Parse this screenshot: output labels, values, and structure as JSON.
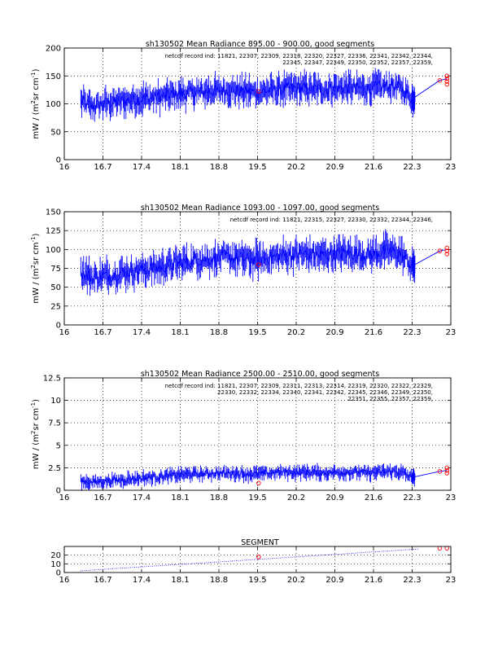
{
  "panels": [
    {
      "title": "sh130502 Mean Radiance 895.00 - 900.00, good segments",
      "ylabel_main": "mW / (m",
      "ylabel_sup": "2",
      "ylabel_tail": "sr cm",
      "ylabel_sup2": "-1",
      "ylabel_close": ")",
      "annotation": [
        "netcdf record ind:  11821, 22307, 22309, 22318, 22320, 22327, 22336, 22341, 22342, 22344,",
        "22345, 22347, 22349, 22350, 22352, 22357, 22359,"
      ]
    },
    {
      "title": "sh130502 Mean Radiance 1093.00 - 1097.00, good segments",
      "ylabel_main": "mW / (m",
      "ylabel_sup": "2",
      "ylabel_tail": "sr cm",
      "ylabel_sup2": "-1",
      "ylabel_close": ")",
      "annotation": [
        "netcdf record ind:  11821, 22315, 22327, 22330, 22332, 22344, 22346,"
      ]
    },
    {
      "title": "sh130502 Mean Radiance 2500.00 - 2510.00, good segments",
      "ylabel_main": "mW / (m",
      "ylabel_sup": "2",
      "ylabel_tail": "sr cm",
      "ylabel_sup2": "-1",
      "ylabel_close": ")",
      "annotation": [
        "netcdf record ind:  11821, 22307, 22309, 22311, 22313, 22314, 22319, 22320, 22322, 22329,",
        "22330, 22332, 22334, 22340, 22341, 22342, 22345, 22346, 22349, 22350,",
        "22351, 22355, 22357, 22359,"
      ]
    },
    {
      "title": "SEGMENT",
      "annotation": []
    }
  ],
  "chart_data": [
    {
      "type": "line",
      "title": "sh130502 Mean Radiance 895.00 - 900.00, good segments",
      "xlabel": "",
      "ylabel": "mW / (m2 sr cm-1)",
      "xlim": [
        16,
        23
      ],
      "ylim": [
        0,
        200
      ],
      "x_ticks": [
        "16",
        "16.7",
        "17.4",
        "18.1",
        "18.8",
        "19.5",
        "20.2",
        "20.9",
        "21.6",
        "22.3",
        "23"
      ],
      "y_ticks": [
        "0",
        "50",
        "100",
        "150",
        "200"
      ],
      "grid": true,
      "series_color": "#0000ff",
      "marker_color": "#ff0000",
      "series": [
        {
          "values_x": [
            16.3,
            16.5,
            16.7,
            16.9,
            17.1,
            17.3,
            17.5,
            17.7,
            17.9,
            18.1,
            18.3,
            18.5,
            18.7,
            18.9,
            19.1,
            19.3,
            19.5,
            19.7,
            19.9,
            20.1,
            20.3,
            20.5,
            20.7,
            20.9,
            21.1,
            21.3,
            21.5,
            21.7,
            21.9,
            22.1,
            22.3,
            22.35
          ],
          "values_y": [
            105,
            95,
            100,
            103,
            106,
            108,
            110,
            112,
            115,
            118,
            120,
            122,
            123,
            125,
            124,
            122,
            121,
            124,
            126,
            127,
            128,
            127,
            126,
            128,
            129,
            128,
            127,
            130,
            132,
            128,
            110,
            112
          ],
          "spread": 20
        }
      ],
      "tail_segment": {
        "x": [
          22.35,
          22.8,
          22.93
        ],
        "y": [
          112,
          142,
          145
        ]
      },
      "red_markers": [
        {
          "x": 19.52,
          "y": 122
        },
        {
          "x": 22.8,
          "y": 142
        },
        {
          "x": 22.93,
          "y": 135
        },
        {
          "x": 22.93,
          "y": 140
        },
        {
          "x": 22.93,
          "y": 145
        },
        {
          "x": 22.93,
          "y": 150
        }
      ]
    },
    {
      "type": "line",
      "title": "sh130502 Mean Radiance 1093.00 - 1097.00, good segments",
      "xlabel": "",
      "ylabel": "mW / (m2 sr cm-1)",
      "xlim": [
        16,
        23
      ],
      "ylim": [
        0,
        150
      ],
      "x_ticks": [
        "16",
        "16.7",
        "17.4",
        "18.1",
        "18.8",
        "19.5",
        "20.2",
        "20.9",
        "21.6",
        "22.3",
        "23"
      ],
      "y_ticks": [
        "0",
        "25",
        "50",
        "75",
        "100",
        "125",
        "150"
      ],
      "grid": true,
      "series_color": "#0000ff",
      "marker_color": "#ff0000",
      "series": [
        {
          "values_x": [
            16.3,
            16.5,
            16.7,
            16.9,
            17.1,
            17.3,
            17.5,
            17.7,
            17.9,
            18.1,
            18.3,
            18.5,
            18.7,
            18.9,
            19.1,
            19.3,
            19.5,
            19.7,
            19.9,
            20.1,
            20.3,
            20.5,
            20.7,
            20.9,
            21.1,
            21.3,
            21.5,
            21.7,
            21.9,
            22.1,
            22.3,
            22.35
          ],
          "values_y": [
            70,
            63,
            65,
            67,
            70,
            72,
            74,
            76,
            79,
            82,
            85,
            87,
            88,
            90,
            89,
            87,
            86,
            89,
            91,
            93,
            94,
            93,
            92,
            94,
            95,
            94,
            93,
            96,
            98,
            94,
            78,
            80
          ],
          "spread": 16
        }
      ],
      "tail_segment": {
        "x": [
          22.35,
          22.8,
          22.93
        ],
        "y": [
          80,
          98,
          100
        ]
      },
      "red_markers": [
        {
          "x": 19.52,
          "y": 80
        },
        {
          "x": 22.8,
          "y": 98
        },
        {
          "x": 22.93,
          "y": 94
        },
        {
          "x": 22.93,
          "y": 98
        },
        {
          "x": 22.93,
          "y": 102
        }
      ]
    },
    {
      "type": "line",
      "title": "sh130502 Mean Radiance 2500.00 - 2510.00, good segments",
      "xlabel": "",
      "ylabel": "mW / (m2 sr cm-1)",
      "xlim": [
        16,
        23
      ],
      "ylim": [
        0,
        12.5
      ],
      "x_ticks": [
        "16",
        "16.7",
        "17.4",
        "18.1",
        "18.8",
        "19.5",
        "20.2",
        "20.9",
        "21.6",
        "22.3",
        "23"
      ],
      "y_ticks": [
        "0",
        "2.5",
        "5",
        "7.5",
        "10",
        "12.5"
      ],
      "grid": true,
      "series_color": "#0000ff",
      "marker_color": "#ff0000",
      "series": [
        {
          "values_x": [
            16.3,
            16.5,
            16.7,
            16.9,
            17.1,
            17.3,
            17.5,
            17.7,
            17.9,
            18.1,
            18.3,
            18.5,
            18.7,
            18.9,
            19.1,
            19.3,
            19.5,
            19.7,
            19.9,
            20.1,
            20.3,
            20.5,
            20.7,
            20.9,
            21.1,
            21.3,
            21.5,
            21.7,
            21.9,
            22.1,
            22.3,
            22.35
          ],
          "values_y": [
            1.0,
            0.9,
            1.0,
            1.1,
            1.2,
            1.3,
            1.4,
            1.5,
            1.6,
            1.7,
            1.8,
            1.8,
            1.9,
            1.9,
            1.9,
            1.8,
            1.8,
            1.9,
            2.0,
            2.0,
            2.0,
            2.0,
            1.9,
            2.0,
            2.0,
            2.0,
            1.9,
            2.0,
            2.1,
            2.0,
            1.4,
            1.5
          ],
          "spread": 0.6
        }
      ],
      "tail_segment": {
        "x": [
          22.35,
          22.8,
          22.93
        ],
        "y": [
          1.5,
          2.1,
          2.2
        ]
      },
      "red_markers": [
        {
          "x": 19.52,
          "y": 0.8
        },
        {
          "x": 22.8,
          "y": 2.1
        },
        {
          "x": 22.93,
          "y": 1.9
        },
        {
          "x": 22.93,
          "y": 2.2
        },
        {
          "x": 22.93,
          "y": 2.5
        }
      ]
    },
    {
      "type": "scatter",
      "title": "SEGMENT",
      "xlabel": "",
      "ylabel": "",
      "xlim": [
        16,
        23
      ],
      "ylim": [
        0,
        30
      ],
      "x_ticks": [
        "16",
        "16.7",
        "17.4",
        "18.1",
        "18.8",
        "19.5",
        "20.2",
        "20.9",
        "21.6",
        "22.3",
        "23"
      ],
      "y_ticks": [
        "0",
        "10",
        "20"
      ],
      "grid": true,
      "series_color": "#0000ff",
      "marker_color": "#ff0000",
      "series": [
        {
          "values_x": [
            16.3,
            22.4
          ],
          "values_y": [
            2,
            27
          ]
        }
      ],
      "red_markers": [
        {
          "x": 19.52,
          "y": 18
        },
        {
          "x": 22.8,
          "y": 28
        },
        {
          "x": 22.93,
          "y": 28
        }
      ]
    }
  ]
}
